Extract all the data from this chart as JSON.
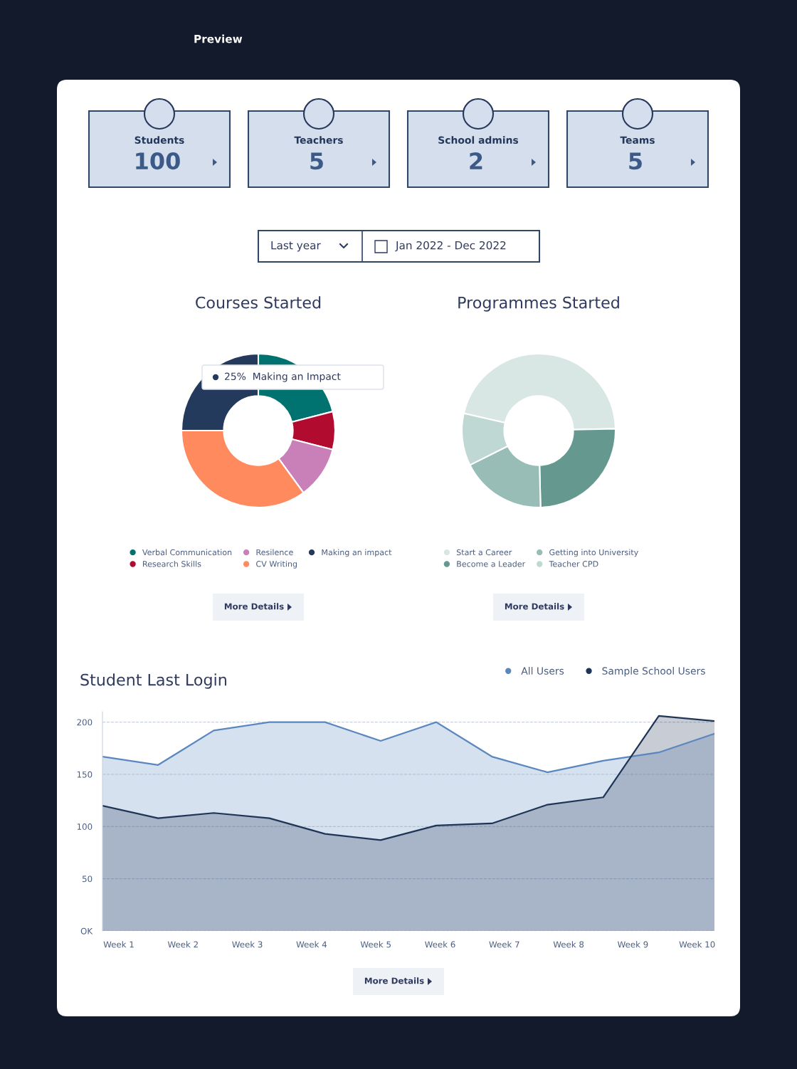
{
  "chart_data": [
    {
      "type": "other",
      "categories": [
        "Students",
        "Teachers",
        "School admins",
        "Teams"
      ],
      "values": [
        100,
        5,
        2,
        5
      ],
      "data_labels": true,
      "annotations": [
        "Preview",
        "Last year",
        "Jan 2022 - Dec 2022"
      ]
    },
    {
      "type": "donut",
      "title": "Courses Started",
      "categories": [
        "Verbal Communication",
        "Research Skills",
        "Resilence",
        "CV Writing",
        "Making an impact"
      ],
      "values": [
        21,
        8,
        11,
        35,
        25
      ],
      "colors": [
        "#007370",
        "#b10c30",
        "#c97fb8",
        "#ff8a5e",
        "#233a5c"
      ],
      "legend": "bottom",
      "annotations": [
        "25%  Making an Impact",
        "More Details"
      ]
    },
    {
      "type": "donut",
      "title": "Programmes Started",
      "categories": [
        "Start a Career",
        "Become a Leader",
        "Getting into University",
        "Teacher CPD"
      ],
      "values": [
        46,
        25,
        18,
        11
      ],
      "colors": [
        "#d9e7e4",
        "#65998f",
        "#97bdb6",
        "#c0d8d3"
      ],
      "legend": "bottom",
      "annotations": [
        "More Details"
      ]
    },
    {
      "type": "area",
      "title": "Student Last Login",
      "categories": [
        null,
        null,
        null,
        null,
        null,
        null,
        null,
        null,
        null,
        null,
        null,
        null
      ],
      "ylim": [
        0,
        210
      ],
      "yticks": [
        {
          "value": 0,
          "label": "OK"
        },
        50,
        100,
        150,
        200
      ],
      "grid": "y",
      "legend": "top right",
      "series": [
        {
          "name": "All Users",
          "color": "#5b87bf",
          "values": [
            167,
            159,
            192,
            200,
            200,
            182,
            200,
            167,
            152,
            163,
            171,
            189
          ]
        },
        {
          "name": "Sample School Users",
          "color": "#1f3556",
          "values": [
            120,
            108,
            113,
            108,
            93,
            87,
            101,
            103,
            121,
            128,
            206,
            201
          ]
        }
      ],
      "annotations": [
        "Week 1",
        "Week 2",
        "Week 3",
        "Week 4",
        "Week 5",
        "Week 6",
        "Week 7",
        "Week 8",
        "Week 9",
        "Week 10",
        "More Details"
      ]
    }
  ]
}
